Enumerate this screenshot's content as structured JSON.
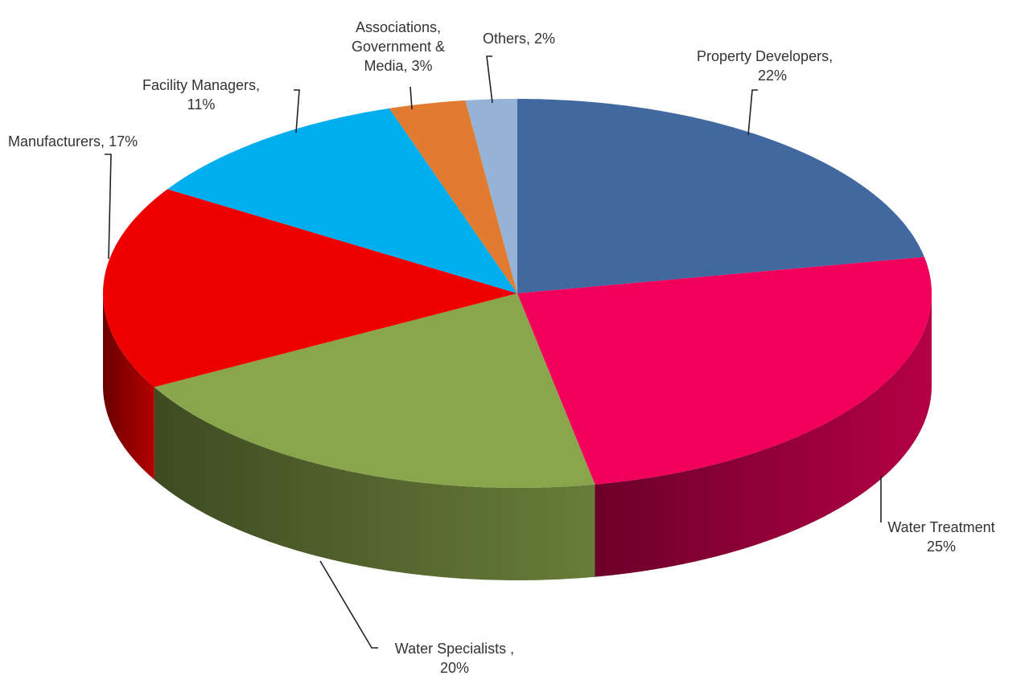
{
  "chart_data": {
    "type": "pie3d",
    "categories": [
      "Property Developers,",
      "Water Treatment",
      "Water Specialists ,",
      "Manufacturers,",
      "Facility Managers,",
      "Associations, Government & Media,",
      "Others,"
    ],
    "values": [
      22,
      25,
      20,
      17,
      11,
      3,
      2
    ],
    "value_labels": [
      "22%",
      "25%",
      "20%",
      "17%",
      "11%",
      "3%",
      "2%"
    ],
    "colors": [
      "#4169a0",
      "#f0005a",
      "#8aa64c",
      "#ee0000",
      "#00aeef",
      "#e07b30",
      "#95b3d7"
    ],
    "start_angle": 0,
    "direction": "clockwise"
  }
}
